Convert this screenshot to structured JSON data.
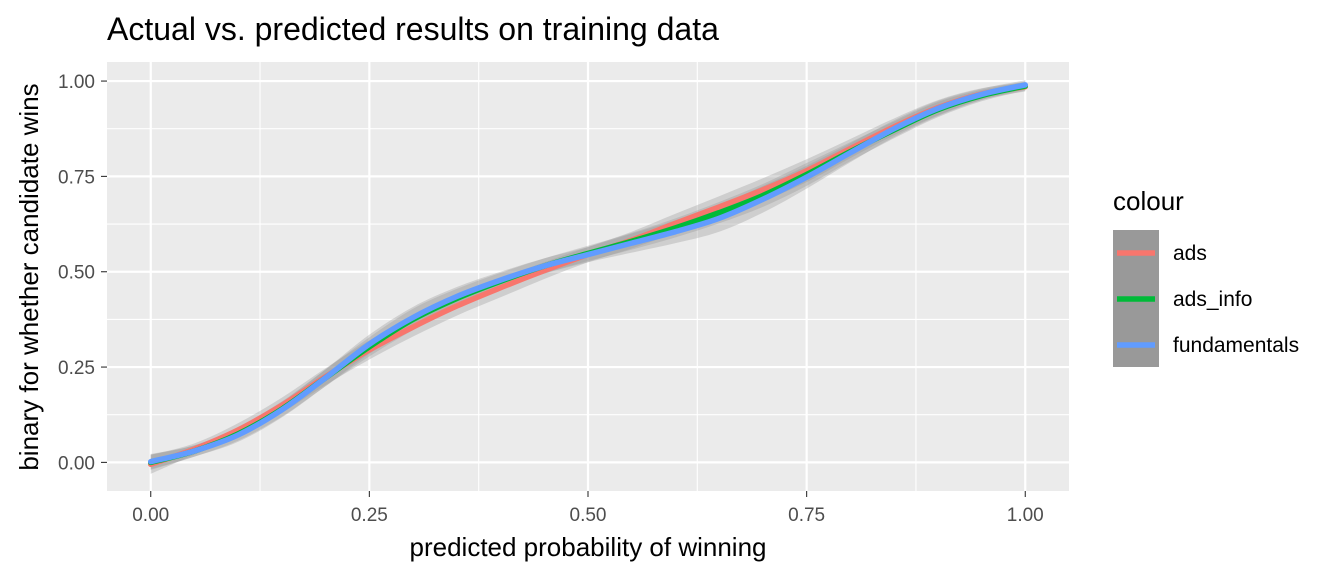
{
  "chart_data": {
    "type": "line",
    "title": "Actual vs. predicted results on training data",
    "xlabel": "predicted probability of winning",
    "ylabel": "binary for whether candidate wins",
    "xlim": [
      -0.05,
      1.05
    ],
    "ylim": [
      -0.075,
      1.05
    ],
    "x_ticks": [
      "0.00",
      "0.25",
      "0.50",
      "0.75",
      "1.00"
    ],
    "y_ticks": [
      "0.00",
      "0.25",
      "0.50",
      "0.75",
      "1.00"
    ],
    "grid": true,
    "legend": {
      "title": "colour",
      "position": "right"
    },
    "x": [
      0.0,
      0.05,
      0.1,
      0.15,
      0.2,
      0.25,
      0.3,
      0.35,
      0.4,
      0.45,
      0.5,
      0.55,
      0.6,
      0.65,
      0.7,
      0.75,
      0.8,
      0.85,
      0.9,
      0.95,
      1.0
    ],
    "series": [
      {
        "name": "ads",
        "color": "#F8766D",
        "values": [
          -0.005,
          0.035,
          0.085,
          0.15,
          0.225,
          0.295,
          0.355,
          0.41,
          0.458,
          0.503,
          0.545,
          0.583,
          0.627,
          0.67,
          0.715,
          0.765,
          0.823,
          0.88,
          0.93,
          0.966,
          0.985
        ],
        "band": [
          0.025,
          0.015,
          0.018,
          0.02,
          0.022,
          0.025,
          0.025,
          0.025,
          0.025,
          0.022,
          0.02,
          0.022,
          0.025,
          0.028,
          0.03,
          0.03,
          0.025,
          0.022,
          0.02,
          0.015,
          0.012
        ]
      },
      {
        "name": "ads_info",
        "color": "#00BA38",
        "values": [
          0.0,
          0.03,
          0.075,
          0.14,
          0.222,
          0.303,
          0.375,
          0.43,
          0.475,
          0.515,
          0.548,
          0.58,
          0.615,
          0.655,
          0.7,
          0.755,
          0.815,
          0.872,
          0.925,
          0.962,
          0.987
        ],
        "band": [
          0.02,
          0.015,
          0.018,
          0.02,
          0.022,
          0.025,
          0.028,
          0.025,
          0.022,
          0.02,
          0.02,
          0.022,
          0.025,
          0.028,
          0.03,
          0.03,
          0.025,
          0.022,
          0.02,
          0.015,
          0.012
        ]
      },
      {
        "name": "fundamentals",
        "color": "#619CFF",
        "values": [
          0.002,
          0.03,
          0.072,
          0.138,
          0.222,
          0.31,
          0.38,
          0.435,
          0.478,
          0.515,
          0.545,
          0.575,
          0.605,
          0.64,
          0.69,
          0.748,
          0.812,
          0.875,
          0.928,
          0.965,
          0.99
        ],
        "band": [
          0.02,
          0.015,
          0.018,
          0.02,
          0.022,
          0.025,
          0.028,
          0.025,
          0.022,
          0.02,
          0.02,
          0.025,
          0.03,
          0.035,
          0.035,
          0.03,
          0.025,
          0.022,
          0.02,
          0.015,
          0.012
        ]
      }
    ]
  }
}
